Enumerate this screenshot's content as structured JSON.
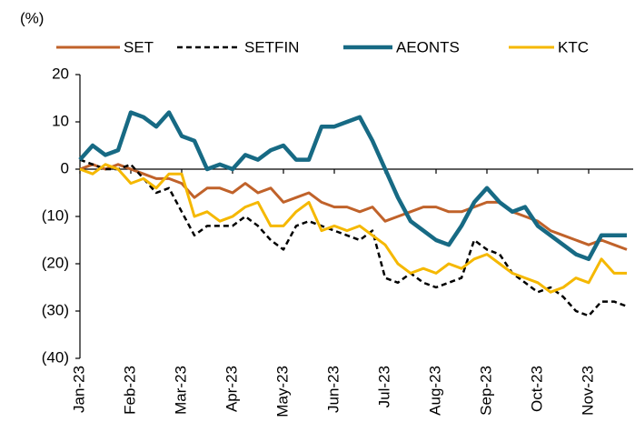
{
  "chart_data": {
    "type": "line",
    "y_label": "(%)",
    "categories": [
      "Jan-23",
      null,
      null,
      null,
      "Feb-23",
      null,
      null,
      null,
      "Mar-23",
      null,
      null,
      null,
      "Apr-23",
      null,
      null,
      null,
      "May-23",
      null,
      null,
      null,
      "Jun-23",
      null,
      null,
      null,
      "Jul-23",
      null,
      null,
      null,
      "Aug-23",
      null,
      null,
      null,
      "Sep-23",
      null,
      null,
      null,
      "Oct-23",
      null,
      null,
      null,
      "Nov-23",
      null,
      null,
      null
    ],
    "series": [
      {
        "name": "SET",
        "color": "#c0622a",
        "style": "solid",
        "values": [
          0,
          1,
          0,
          1,
          0,
          -1,
          -2,
          -2,
          -3,
          -6,
          -4,
          -4,
          -5,
          -3,
          -5,
          -4,
          -7,
          -6,
          -5,
          -7,
          -8,
          -8,
          -9,
          -8,
          -11,
          -10,
          -9,
          -8,
          -8,
          -9,
          -9,
          -8,
          -7,
          -7,
          -9,
          -10,
          -11,
          -13,
          -14,
          -15,
          -16,
          -15,
          -16,
          -17
        ]
      },
      {
        "name": "SETFIN",
        "color": "#000000",
        "style": "dashed",
        "values": [
          2,
          1,
          0,
          0,
          1,
          -2,
          -5,
          -4,
          -9,
          -14,
          -12,
          -12,
          -12,
          -10,
          -12,
          -15,
          -17,
          -12,
          -11,
          -12,
          -13,
          -14,
          -15,
          -13,
          -23,
          -24,
          -22,
          -24,
          -25,
          -24,
          -23,
          -15,
          -17,
          -18,
          -22,
          -24,
          -26,
          -25,
          -27,
          -30,
          -31,
          -28,
          -28,
          -29
        ]
      },
      {
        "name": "AEONTS",
        "color": "#176a84",
        "style": "bold",
        "values": [
          2,
          5,
          3,
          4,
          12,
          11,
          9,
          12,
          7,
          6,
          0,
          1,
          0,
          3,
          2,
          4,
          5,
          2,
          2,
          9,
          9,
          10,
          11,
          6,
          0,
          -6,
          -11,
          -13,
          -15,
          -16,
          -12,
          -7,
          -4,
          -7,
          -9,
          -8,
          -12,
          -14,
          -16,
          -18,
          -19,
          -14,
          -14,
          -14
        ]
      },
      {
        "name": "KTC",
        "color": "#f5b800",
        "style": "solid",
        "values": [
          0,
          -1,
          1,
          0,
          -3,
          -2,
          -4,
          -1,
          -1,
          -10,
          -9,
          -11,
          -10,
          -8,
          -7,
          -12,
          -12,
          -9,
          -7,
          -13,
          -12,
          -13,
          -12,
          -14,
          -16,
          -20,
          -22,
          -21,
          -22,
          -20,
          -21,
          -19,
          -18,
          -20,
          -22,
          -23,
          -24,
          -26,
          -25,
          -23,
          -24,
          -19,
          -22,
          -22
        ]
      }
    ],
    "ylim": [
      -40,
      20
    ],
    "yticks": [
      20,
      10,
      0,
      {
        "value": -10,
        "label": "(10)"
      },
      {
        "value": -20,
        "label": "(20)"
      },
      {
        "value": -30,
        "label": "(30)"
      },
      {
        "value": -40,
        "label": "(40)"
      }
    ]
  }
}
